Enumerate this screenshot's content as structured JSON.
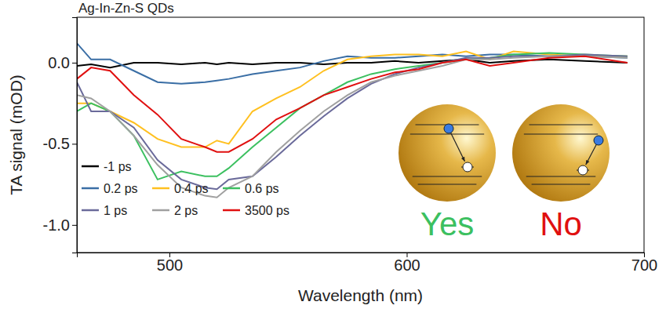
{
  "chart_data": {
    "type": "line",
    "title": "Ag-In-Zn-S QDs",
    "x_label": "Wavelength (nm)",
    "y_label": "TA signal (mOD)",
    "x": [
      461,
      467,
      475,
      485,
      495,
      505,
      515,
      520,
      525,
      535,
      545,
      555,
      565,
      575,
      585,
      595,
      605,
      615,
      625,
      635,
      645,
      660,
      675,
      693
    ],
    "series": [
      {
        "name": "-1 ps",
        "color": "#000000",
        "values": [
          -0.02,
          -0.01,
          -0.03,
          0.0,
          0.0,
          -0.01,
          0.0,
          -0.01,
          0.0,
          -0.01,
          0.0,
          0.0,
          -0.01,
          0.0,
          0.0,
          0.01,
          0.0,
          0.01,
          0.02,
          0.0,
          0.01,
          0.02,
          0.01,
          0.0
        ]
      },
      {
        "name": "0.2 ps",
        "color": "#3a6ea5",
        "values": [
          0.12,
          0.02,
          0.02,
          -0.05,
          -0.12,
          -0.13,
          -0.12,
          -0.11,
          -0.1,
          -0.07,
          -0.05,
          -0.03,
          0.01,
          0.04,
          0.03,
          0.03,
          0.04,
          0.05,
          0.04,
          0.05,
          0.05,
          0.04,
          0.04,
          0.03
        ]
      },
      {
        "name": "0.4 ps",
        "color": "#ffc020",
        "values": [
          -0.25,
          -0.25,
          -0.3,
          -0.37,
          -0.47,
          -0.52,
          -0.52,
          -0.48,
          -0.5,
          -0.3,
          -0.22,
          -0.15,
          -0.05,
          0.02,
          0.04,
          0.05,
          0.05,
          0.04,
          0.07,
          0.02,
          0.07,
          0.05,
          0.04,
          0.04
        ]
      },
      {
        "name": "0.6 ps",
        "color": "#3cc060",
        "values": [
          -0.3,
          -0.25,
          -0.3,
          -0.45,
          -0.72,
          -0.67,
          -0.7,
          -0.7,
          -0.65,
          -0.52,
          -0.4,
          -0.28,
          -0.2,
          -0.12,
          -0.07,
          -0.04,
          -0.02,
          0.0,
          0.02,
          0.03,
          0.05,
          0.06,
          0.05,
          0.04
        ]
      },
      {
        "name": "1 ps",
        "color": "#6a6a9a",
        "values": [
          -0.12,
          -0.3,
          -0.3,
          -0.4,
          -0.6,
          -0.72,
          -0.77,
          -0.78,
          -0.72,
          -0.7,
          -0.58,
          -0.45,
          -0.33,
          -0.22,
          -0.13,
          -0.07,
          -0.03,
          0.0,
          0.03,
          0.03,
          0.04,
          0.04,
          0.05,
          0.04
        ]
      },
      {
        "name": "2 ps",
        "color": "#a0a0a0",
        "values": [
          -0.2,
          -0.22,
          -0.3,
          -0.45,
          -0.63,
          -0.77,
          -0.82,
          -0.83,
          -0.77,
          -0.7,
          -0.55,
          -0.42,
          -0.3,
          -0.2,
          -0.12,
          -0.08,
          -0.05,
          -0.02,
          0.02,
          0.02,
          0.03,
          0.04,
          0.04,
          0.03
        ]
      },
      {
        "name": "3500 ps",
        "color": "#e01010",
        "values": [
          -0.1,
          -0.03,
          -0.05,
          -0.2,
          -0.32,
          -0.47,
          -0.52,
          -0.55,
          -0.55,
          -0.47,
          -0.35,
          -0.28,
          -0.2,
          -0.15,
          -0.1,
          -0.06,
          -0.04,
          0.0,
          0.02,
          -0.02,
          0.0,
          0.03,
          0.04,
          0.0
        ]
      }
    ],
    "xlim": [
      461,
      700
    ],
    "ylim": [
      -1.17,
      0.28
    ],
    "xticks": [
      500,
      600,
      700
    ],
    "yticks": [
      {
        "value": -1.0,
        "label": "-1.0"
      },
      {
        "value": -0.5,
        "label": "-0.5"
      },
      {
        "value": 0.0,
        "label": "0.0"
      }
    ],
    "grid": false,
    "legend": "lower left",
    "annotations": [
      {
        "text": "Yes",
        "color": "#3cc060"
      },
      {
        "text": "No",
        "color": "#e01010"
      }
    ]
  }
}
